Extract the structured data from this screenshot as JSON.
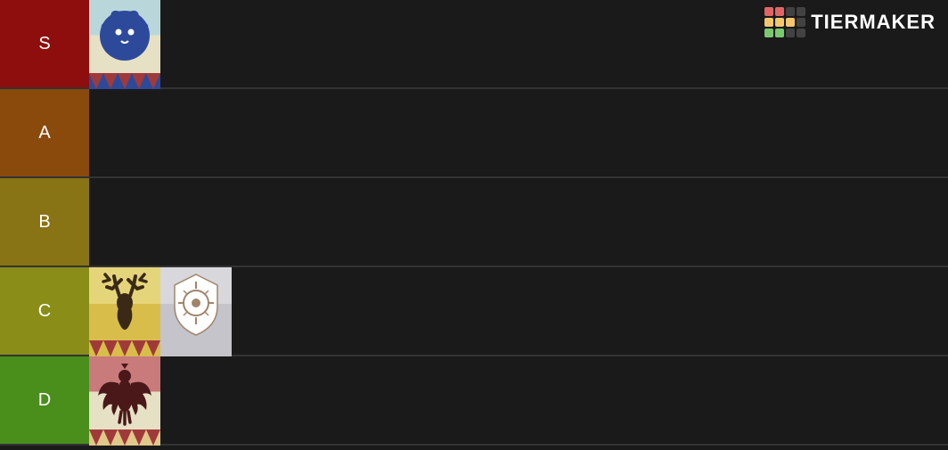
{
  "page_background": "#1a1a1a",
  "row_divider_color": "#333333",
  "tier_label_text_color": "#ffffff",
  "tier_label_fontsize": 20,
  "logo": {
    "text": "TIERMAKER",
    "text_color": "#ffffff",
    "grid_colors": [
      "#e06666",
      "#e06666",
      "#424242",
      "#424242",
      "#f5c76d",
      "#f5c76d",
      "#f5c76d",
      "#424242",
      "#7bc96f",
      "#7bc96f",
      "#424242",
      "#424242"
    ]
  },
  "tiers": [
    {
      "label": "S",
      "label_bg": "#8e0d0d",
      "items": [
        {
          "name": "blue-lions-banner",
          "banner_bg_top": "#b9d7db",
          "banner_bg_bottom": "#e6e0c4",
          "banner_bg_split": 0.48,
          "emblem_type": "lion",
          "emblem_color": "#2d4a9a",
          "emblem_detail": "#ffffff",
          "zigzag_top": "#a03a3a",
          "zigzag_bottom": "#2d4a9a"
        }
      ]
    },
    {
      "label": "A",
      "label_bg": "#8a4a0c",
      "items": []
    },
    {
      "label": "B",
      "label_bg": "#887414",
      "items": []
    },
    {
      "label": "C",
      "label_bg": "#8a8e18",
      "items": [
        {
          "name": "golden-deer-banner",
          "banner_bg_top": "#e5d57a",
          "banner_bg_bottom": "#d9bd4a",
          "banner_bg_split": 0.5,
          "emblem_type": "deer",
          "emblem_color": "#3a2a15",
          "emblem_detail": "#3a2a15",
          "zigzag_top": "#a03a3a",
          "zigzag_bottom": "#d9bd4a"
        },
        {
          "name": "church-banner",
          "banner_bg_top": "#d8d8dc",
          "banner_bg_bottom": "#c4c4ca",
          "banner_bg_split": 0.5,
          "emblem_type": "crest",
          "emblem_color": "#ffffff",
          "emblem_detail": "#a0856a",
          "zigzag_top": "#c4c4ca",
          "zigzag_bottom": "#c4c4ca"
        }
      ]
    },
    {
      "label": "D",
      "label_bg": "#4a8e1c",
      "items": [
        {
          "name": "black-eagles-banner",
          "banner_bg_top": "#c97a7a",
          "banner_bg_bottom": "#e6e0c4",
          "banner_bg_split": 0.48,
          "emblem_type": "eagle",
          "emblem_color": "#4a1818",
          "emblem_detail": "#4a1818",
          "zigzag_top": "#a03a3a",
          "zigzag_bottom": "#e0c88a"
        }
      ]
    }
  ]
}
